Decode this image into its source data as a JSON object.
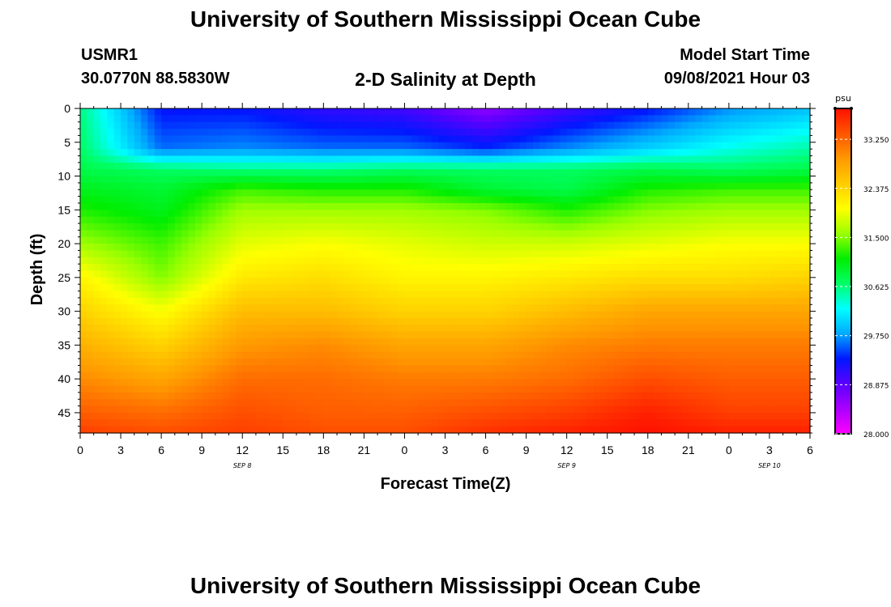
{
  "header": {
    "title": "University of Southern Mississippi Ocean Cube",
    "station": "USMR1",
    "coords": "30.0770N  88.5830W",
    "plot_title": "2-D Salinity at Depth",
    "model_label": "Model Start Time",
    "model_time": "09/08/2021 Hour 03"
  },
  "footer": {
    "title": "University of Southern Mississippi Ocean Cube"
  },
  "colors": {
    "scale": [
      "#ff00ff",
      "#aa00ff",
      "#5a00ff",
      "#0018ff",
      "#00aaff",
      "#00ffff",
      "#00ff66",
      "#00ee00",
      "#99ff00",
      "#ffff00",
      "#ffcc00",
      "#ff9900",
      "#ff5500",
      "#ff1100"
    ]
  },
  "chart_data": {
    "type": "heatmap",
    "title": "2-D Salinity at Depth",
    "xlabel": "Forecast Time(Z)",
    "ylabel": "Depth (ft)",
    "x_tick_labels": [
      "0",
      "3",
      "6",
      "9",
      "12",
      "15",
      "18",
      "21",
      "0",
      "3",
      "6",
      "9",
      "12",
      "15",
      "18",
      "21",
      "0",
      "3",
      "6"
    ],
    "date_labels": [
      {
        "label": "SEP 8",
        "tick_index": 4
      },
      {
        "label": "SEP 9",
        "tick_index": 12
      },
      {
        "label": "SEP 10",
        "tick_index": 17
      }
    ],
    "y_ticks": [
      0,
      5,
      10,
      15,
      20,
      25,
      30,
      35,
      40,
      45
    ],
    "ylim": [
      48,
      0
    ],
    "colorbar": {
      "unit": "psu",
      "ticks": [
        "33.250",
        "32.375",
        "31.500",
        "30.625",
        "29.750",
        "28.875",
        "28.000"
      ],
      "ticks_values": [
        33.25,
        32.375,
        31.5,
        30.625,
        29.75,
        28.875,
        28.0
      ],
      "range": [
        28.0,
        33.8
      ]
    },
    "x_hours": [
      0,
      6,
      12,
      18,
      24,
      30,
      36,
      42,
      48,
      54
    ],
    "depth_levels": [
      0,
      6,
      9,
      12,
      15,
      20,
      25,
      30,
      35,
      40,
      45,
      48
    ],
    "salinity": [
      [
        30.6,
        29.3,
        29.3,
        29.1,
        29.0,
        28.6,
        29.0,
        29.3,
        29.7,
        29.9
      ],
      [
        30.7,
        29.6,
        29.7,
        29.6,
        29.6,
        29.4,
        29.7,
        30.0,
        30.3,
        30.5
      ],
      [
        30.8,
        30.7,
        30.6,
        30.6,
        30.7,
        30.7,
        30.7,
        30.8,
        30.7,
        30.8
      ],
      [
        31.0,
        30.9,
        31.3,
        31.2,
        31.2,
        30.9,
        30.8,
        31.2,
        31.3,
        31.3
      ],
      [
        31.2,
        31.0,
        31.6,
        31.6,
        31.6,
        31.5,
        31.2,
        31.5,
        31.6,
        31.6
      ],
      [
        31.6,
        31.3,
        31.9,
        32.0,
        31.9,
        31.8,
        31.8,
        31.9,
        32.0,
        32.0
      ],
      [
        32.1,
        31.5,
        32.2,
        32.3,
        32.1,
        32.1,
        32.2,
        32.3,
        32.3,
        32.4
      ],
      [
        32.4,
        32.0,
        32.6,
        32.6,
        32.4,
        32.4,
        32.6,
        32.8,
        32.8,
        32.8
      ],
      [
        32.7,
        32.4,
        32.9,
        33.0,
        32.8,
        32.8,
        33.0,
        33.1,
        33.1,
        33.1
      ],
      [
        33.0,
        32.8,
        33.2,
        33.2,
        33.1,
        33.1,
        33.2,
        33.4,
        33.3,
        33.3
      ],
      [
        33.3,
        33.2,
        33.4,
        33.3,
        33.3,
        33.4,
        33.5,
        33.7,
        33.5,
        33.5
      ],
      [
        33.5,
        33.4,
        33.5,
        33.4,
        33.4,
        33.6,
        33.7,
        33.8,
        33.7,
        33.7
      ]
    ]
  }
}
